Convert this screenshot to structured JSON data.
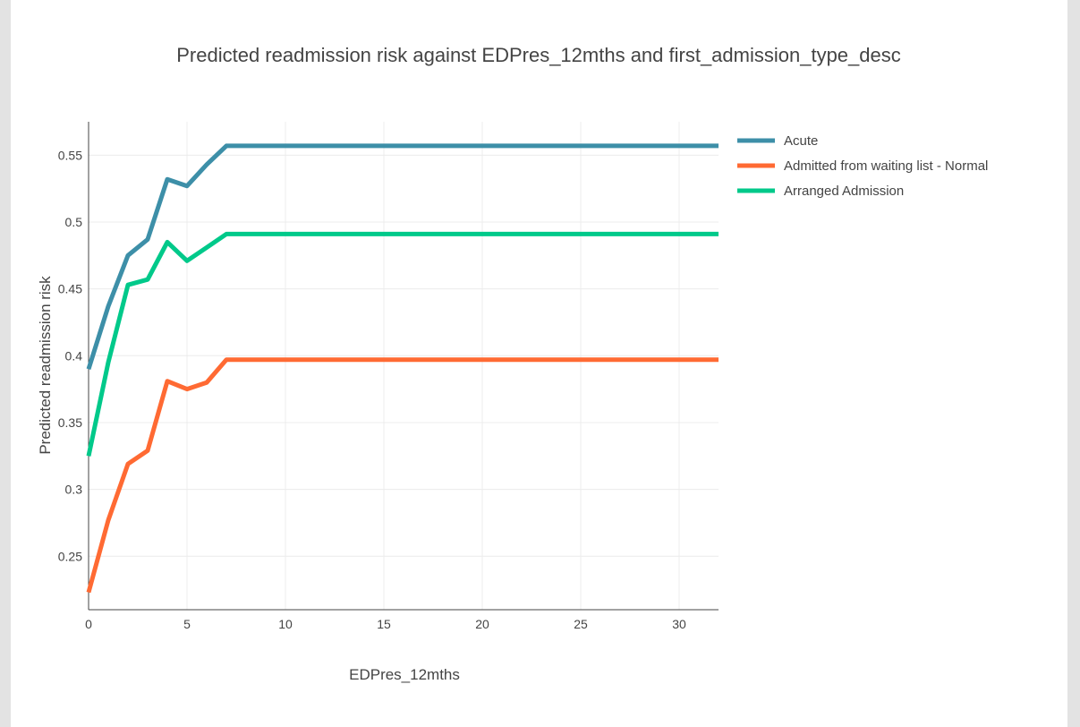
{
  "chart_data": {
    "type": "line",
    "title": "Predicted readmission risk against EDPres_12mths and first_admission_type_desc",
    "xlabel": "EDPres_12mths",
    "ylabel": "Predicted readmission risk",
    "xlim": [
      0,
      32
    ],
    "ylim": [
      0.21,
      0.575
    ],
    "x_ticks": [
      0,
      5,
      10,
      15,
      20,
      25,
      30
    ],
    "y_ticks": [
      0.25,
      0.3,
      0.35,
      0.4,
      0.45,
      0.5,
      0.55
    ],
    "x_tick_labels": [
      "0",
      "5",
      "10",
      "15",
      "20",
      "25",
      "30"
    ],
    "y_tick_labels": [
      "0.25",
      "0.3",
      "0.35",
      "0.4",
      "0.45",
      "0.5",
      "0.55"
    ],
    "grid": true,
    "legend_position": "top-right",
    "series": [
      {
        "name": "Acute",
        "color": "#3d8fa8",
        "x": [
          0,
          1,
          2,
          3,
          4,
          5,
          6,
          7,
          32
        ],
        "y": [
          0.39,
          0.437,
          0.475,
          0.487,
          0.532,
          0.527,
          0.543,
          0.557,
          0.557
        ]
      },
      {
        "name": "Admitted from waiting list - Normal",
        "color": "#ff6a33",
        "x": [
          0,
          1,
          2,
          3,
          4,
          5,
          6,
          7,
          32
        ],
        "y": [
          0.223,
          0.277,
          0.319,
          0.329,
          0.381,
          0.375,
          0.38,
          0.397,
          0.397
        ]
      },
      {
        "name": "Arranged Admission",
        "color": "#00c98a",
        "x": [
          0,
          1,
          2,
          3,
          4,
          5,
          6,
          7,
          32
        ],
        "y": [
          0.325,
          0.395,
          0.453,
          0.457,
          0.485,
          0.471,
          0.481,
          0.491,
          0.491
        ]
      }
    ]
  }
}
